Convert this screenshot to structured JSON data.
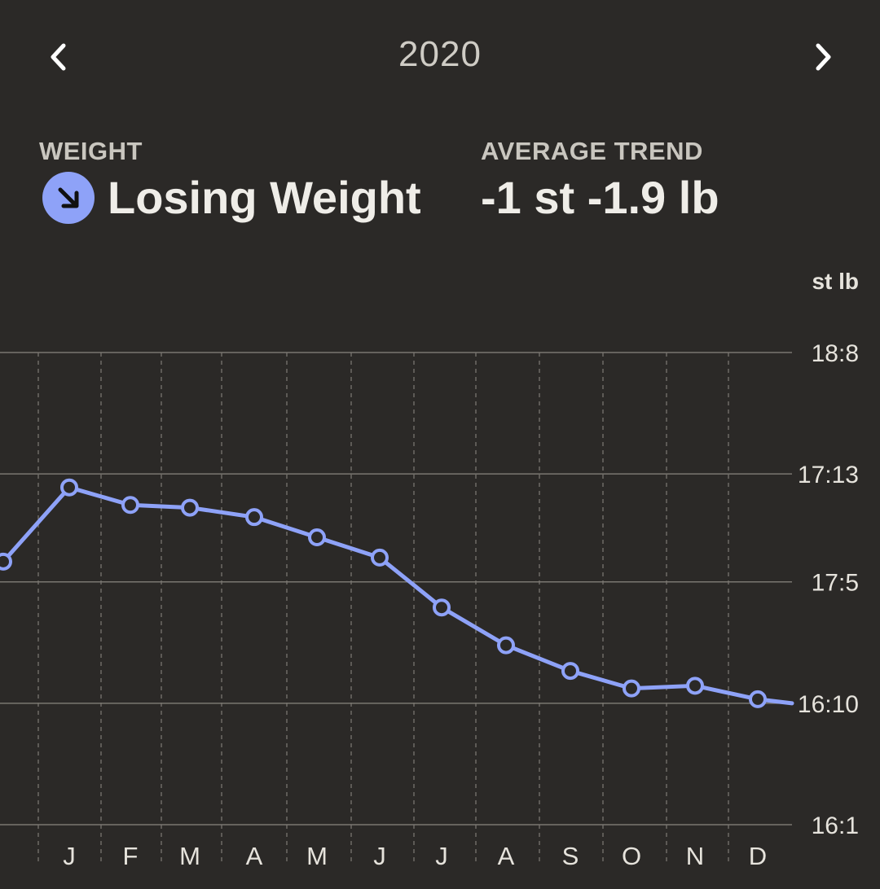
{
  "header": {
    "year": "2020",
    "prev_icon": "chevron-left-icon",
    "next_icon": "chevron-right-icon"
  },
  "stats": {
    "weight_label": "WEIGHT",
    "weight_value": "Losing Weight",
    "trend_icon": "arrow-down-right-icon",
    "trend_label": "AVERAGE TREND",
    "trend_value": "-1 st -1.9 lb"
  },
  "colors": {
    "background": "#2b2927",
    "line": "#8ea2f8",
    "grid": "#6e6b66",
    "text": "#eceae4"
  },
  "chart_data": {
    "type": "line",
    "unit": "st lb",
    "y_ticks": [
      "18:8",
      "17:13",
      "17:5",
      "16:10",
      "16:1"
    ],
    "y_tick_values": [
      260,
      251,
      243,
      234,
      225
    ],
    "ylim": [
      225,
      260
    ],
    "categories": [
      "J",
      "F",
      "M",
      "A",
      "M",
      "J",
      "J",
      "A",
      "S",
      "O",
      "N",
      "D"
    ],
    "grid": true,
    "series": [
      {
        "values_lb": [
          250.0,
          248.7,
          248.5,
          247.8,
          246.3,
          244.8,
          241.1,
          238.3,
          236.4,
          235.1,
          235.3,
          234.3
        ]
      }
    ],
    "edge_values_lb": {
      "before": 244.5,
      "after": 234.0
    }
  }
}
